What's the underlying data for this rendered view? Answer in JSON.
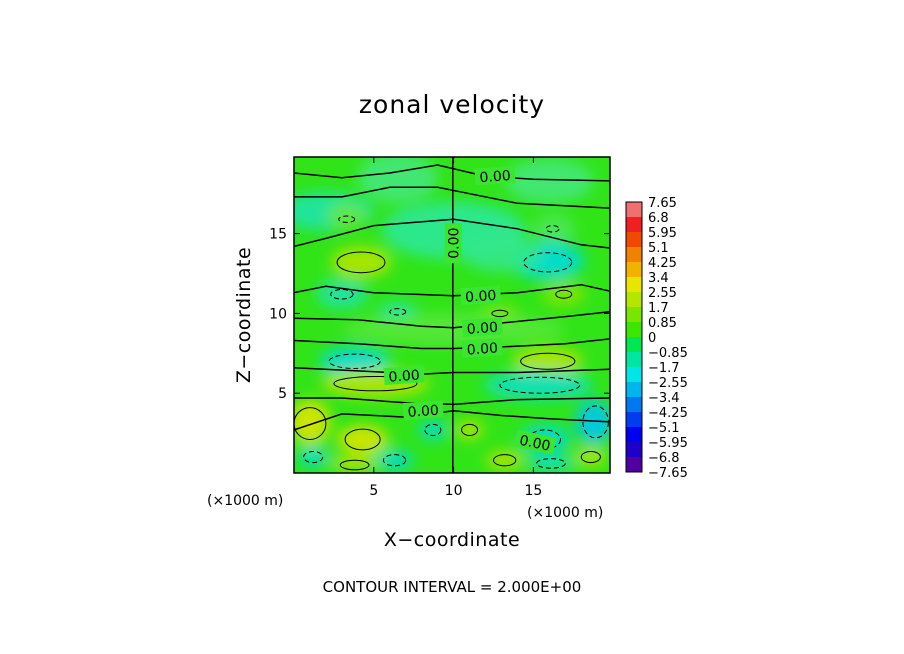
{
  "chart_data": {
    "type": "heatmap",
    "title": "zonal velocity",
    "xlabel": "X−coordinate",
    "ylabel": "Z−coordinate",
    "x_unit": "(×1000 m)",
    "z_unit": "(×1000 m)",
    "xlim": [
      0,
      19.8
    ],
    "ylim": [
      0,
      19.8
    ],
    "x_ticks": [
      5,
      10,
      15
    ],
    "z_ticks": [
      5,
      10,
      15
    ],
    "colorbar": {
      "labels": [
        "7.65",
        "6.8",
        "5.95",
        "5.1",
        "4.25",
        "3.4",
        "2.55",
        "1.7",
        "0.85",
        "0",
        "−0.85",
        "−1.7",
        "−2.55",
        "−3.4",
        "−4.25",
        "−5.1",
        "−5.95",
        "−6.8",
        "−7.65"
      ],
      "colors": [
        "#f07070",
        "#f02020",
        "#f04a00",
        "#f08200",
        "#f0b400",
        "#e6e600",
        "#b4e600",
        "#78e600",
        "#3ce600",
        "#00e650",
        "#00e6a0",
        "#00e6e6",
        "#00b4f0",
        "#0078f0",
        "#003cf0",
        "#0000f0",
        "#1e00c8",
        "#5000a0"
      ]
    },
    "contour_labels": [
      {
        "text": "0.00",
        "x": 12.6,
        "z": 18.6
      },
      {
        "text": "0.00",
        "x": 10.0,
        "z": 14.4
      },
      {
        "text": "0.00",
        "x": 11.7,
        "z": 11.1
      },
      {
        "text": "0.00",
        "x": 11.8,
        "z": 9.1
      },
      {
        "text": "0.00",
        "x": 11.8,
        "z": 7.8
      },
      {
        "text": "0.00",
        "x": 6.9,
        "z": 6.1
      },
      {
        "text": "0.00",
        "x": 8.1,
        "z": 3.9
      },
      {
        "text": "0.00",
        "x": 15.1,
        "z": 1.9
      }
    ],
    "annotation": "CONTOUR INTERVAL = 2.000E+00"
  }
}
